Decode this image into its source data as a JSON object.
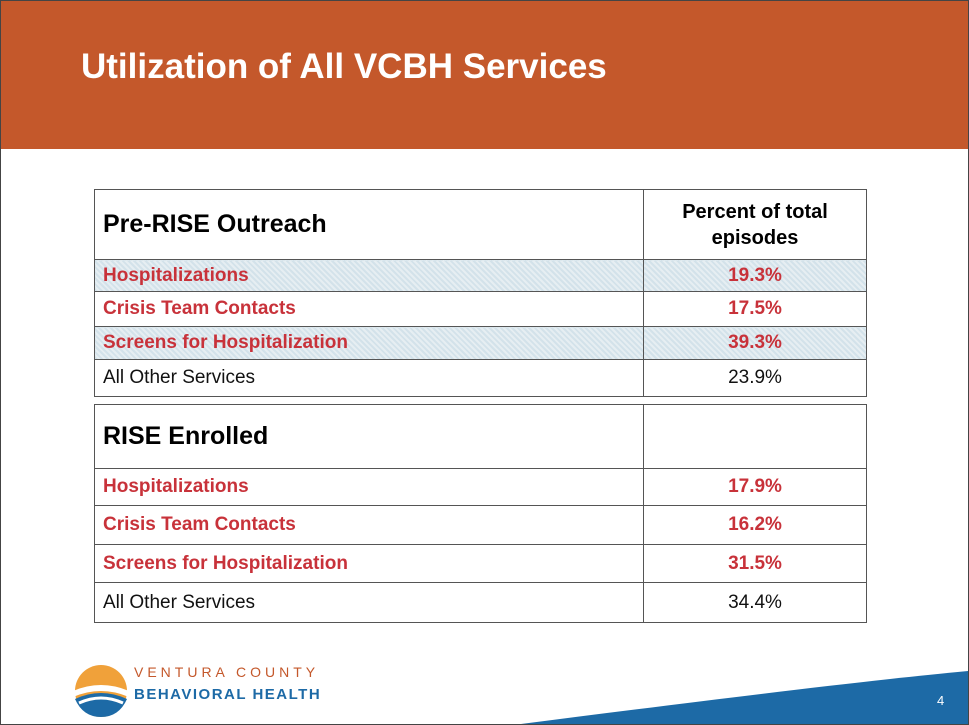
{
  "header": {
    "title": "Utilization of All VCBH Services"
  },
  "tables": [
    {
      "heading": "Pre-RISE Outreach",
      "column_header": "Percent of total episodes",
      "rows": [
        [
          "Hospitalizations",
          "19.3%"
        ],
        [
          "Crisis Team Contacts",
          "17.5%"
        ],
        [
          "Screens for Hospitalization",
          "39.3%"
        ],
        [
          "All Other Services",
          "23.9%"
        ]
      ]
    },
    {
      "heading": "RISE Enrolled",
      "rows": [
        [
          "Hospitalizations",
          "17.9%"
        ],
        [
          "Crisis Team Contacts",
          "16.2%"
        ],
        [
          "Screens for Hospitalization",
          "31.5%"
        ],
        [
          "All Other Services",
          "34.4%"
        ]
      ]
    }
  ],
  "logo": {
    "line1": "VENTURA COUNTY",
    "line2": "BEHAVIORAL HEALTH"
  },
  "page_number": "4"
}
